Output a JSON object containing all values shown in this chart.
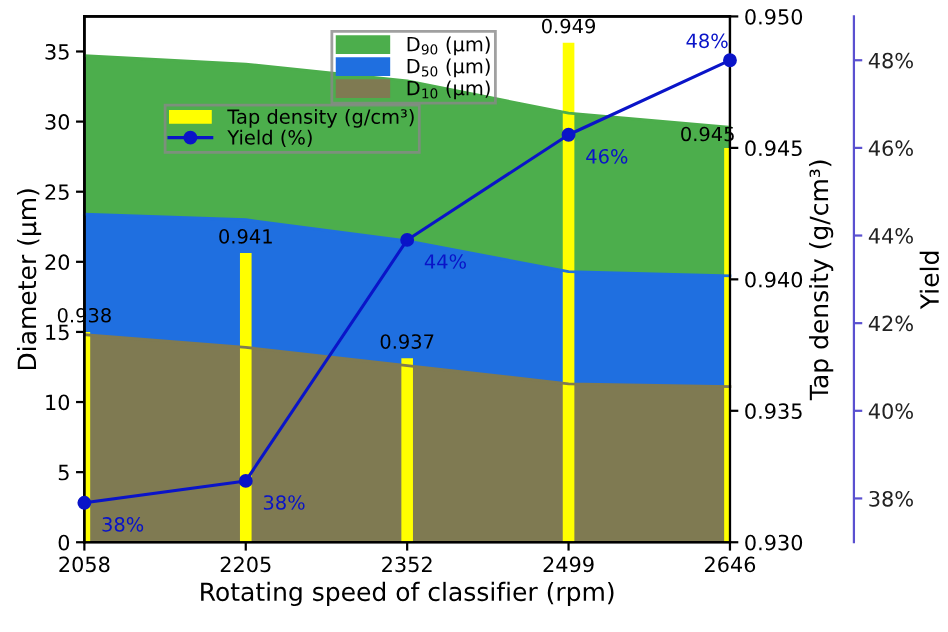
{
  "chart_data": {
    "type": "area",
    "xlabel": "Rotating speed of classifier (rpm)",
    "ylabel": "Diameter (μm)",
    "y2label": "Tap density (g/cm³)",
    "y3label": "Yield",
    "x": [
      2058,
      2205,
      2352,
      2499,
      2646
    ],
    "xlim": [
      2058,
      2646
    ],
    "xticks": [
      2058,
      2205,
      2352,
      2499,
      2646
    ],
    "ylim": [
      0,
      37.5
    ],
    "yticks": [
      0,
      5,
      10,
      15,
      20,
      25,
      30,
      35
    ],
    "y2lim": [
      0.93,
      0.95
    ],
    "y2ticks": [
      {
        "value": 0.93,
        "label": "0.930"
      },
      {
        "value": 0.935,
        "label": "0.935"
      },
      {
        "value": 0.94,
        "label": "0.940"
      },
      {
        "value": 0.945,
        "label": "0.945"
      },
      {
        "value": 0.95,
        "label": "0.950"
      }
    ],
    "y3lim": [
      37,
      49
    ],
    "y3ticks": [
      {
        "value": 38,
        "label": "38%"
      },
      {
        "value": 40,
        "label": "40%"
      },
      {
        "value": 42,
        "label": "42%"
      },
      {
        "value": 44,
        "label": "44%"
      },
      {
        "value": 46,
        "label": "46%"
      },
      {
        "value": 48,
        "label": "48%"
      }
    ],
    "legend": "top",
    "grid": false,
    "series": [
      {
        "name": "D$_{90}$ (μm)",
        "color": "#4cae4c",
        "values": [
          34.7,
          34.1,
          32.9,
          30.6,
          29.6
        ]
      },
      {
        "name": "D$_{50}$ (μm)",
        "color": "#1f6fe0",
        "values": [
          23.4,
          23.0,
          21.5,
          19.3,
          19.0
        ]
      },
      {
        "name": "D$_{10}$ (μm)",
        "color": "#7f7a52",
        "values": [
          14.8,
          13.9,
          12.6,
          11.3,
          11.1
        ]
      },
      {
        "name": "Tap density (g/cm³)",
        "type": "bar",
        "axis": "y2",
        "color": "#ffff00",
        "values": [
          0.938,
          0.941,
          0.937,
          0.949,
          0.945
        ],
        "value_labels": [
          "0.938",
          "0.941",
          "0.937",
          "0.949",
          "0.945"
        ]
      },
      {
        "name": "Yield (%)",
        "type": "line",
        "axis": "y3",
        "color": "#0a14c8",
        "marker": "circle",
        "values": [
          37.9,
          38.4,
          43.9,
          46.3,
          48.0
        ],
        "value_labels": [
          "38%",
          "38%",
          "44%",
          "46%",
          "48%"
        ]
      }
    ]
  }
}
